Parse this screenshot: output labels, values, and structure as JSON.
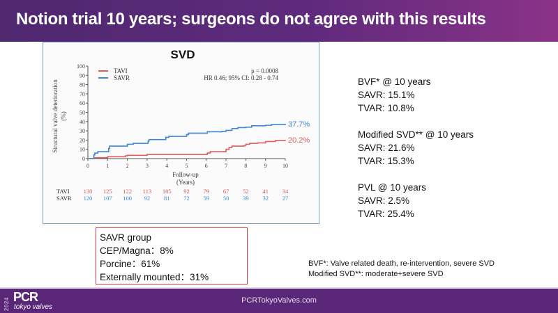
{
  "header": {
    "title": "Notion trial 10 years; surgeons do not agree with this results"
  },
  "chart_data": {
    "type": "line",
    "title": "SVD",
    "xlabel": "Follow-up",
    "xlabel_sub": "(Years)",
    "ylabel": "Structural valve deterioration",
    "ylabel_sub": "(%)",
    "xlim": [
      0,
      10
    ],
    "ylim": [
      0,
      100
    ],
    "xticks": [
      0,
      1,
      2,
      3,
      4,
      5,
      6,
      7,
      8,
      9,
      10
    ],
    "yticks": [
      0,
      10,
      20,
      30,
      40,
      50,
      60,
      70,
      80,
      90,
      100
    ],
    "grid": false,
    "legend": {
      "placement": "top-left",
      "entries": [
        "TAVI",
        "SAVR"
      ]
    },
    "annotations": {
      "p_value": "p = 0.0008",
      "hr": "HR 0.46; 95% CI: 0.28 - 0.74"
    },
    "series": [
      {
        "name": "TAVI",
        "color": "#e05a5e",
        "end_label": "20.2%",
        "steps": [
          [
            0,
            0
          ],
          [
            0.3,
            0
          ],
          [
            0.3,
            1
          ],
          [
            1.0,
            1
          ],
          [
            1.0,
            2
          ],
          [
            1.9,
            2
          ],
          [
            1.9,
            3
          ],
          [
            2.0,
            3
          ],
          [
            2.0,
            3.5
          ],
          [
            3.0,
            3.5
          ],
          [
            3.0,
            4.5
          ],
          [
            6.0,
            4.5
          ],
          [
            6.05,
            6
          ],
          [
            6.2,
            7.5
          ],
          [
            6.9,
            7.5
          ],
          [
            7.0,
            10
          ],
          [
            7.15,
            12
          ],
          [
            7.3,
            13.5
          ],
          [
            7.9,
            14
          ],
          [
            8.0,
            15.5
          ],
          [
            8.2,
            16.5
          ],
          [
            8.6,
            17
          ],
          [
            9.0,
            18.5
          ],
          [
            9.5,
            19.5
          ],
          [
            10.0,
            20.2
          ]
        ]
      },
      {
        "name": "SAVR",
        "color": "#3d87d4",
        "end_label": "37.7%",
        "steps": [
          [
            0,
            0
          ],
          [
            0.25,
            0
          ],
          [
            0.3,
            4
          ],
          [
            0.35,
            6
          ],
          [
            0.5,
            6
          ],
          [
            0.5,
            7.5
          ],
          [
            1.0,
            7.5
          ],
          [
            1.05,
            11
          ],
          [
            1.1,
            13.5
          ],
          [
            2.0,
            13.5
          ],
          [
            2.0,
            15.5
          ],
          [
            2.3,
            15.5
          ],
          [
            2.3,
            16.5
          ],
          [
            3.0,
            16.5
          ],
          [
            3.05,
            19
          ],
          [
            3.1,
            20.5
          ],
          [
            3.9,
            20.5
          ],
          [
            3.95,
            23
          ],
          [
            4.1,
            24
          ],
          [
            4.9,
            24
          ],
          [
            5.0,
            26
          ],
          [
            5.1,
            27.5
          ],
          [
            6.0,
            27.5
          ],
          [
            6.05,
            29
          ],
          [
            6.8,
            29.5
          ],
          [
            7.0,
            30.5
          ],
          [
            7.3,
            32.5
          ],
          [
            7.6,
            33.5
          ],
          [
            8.0,
            34
          ],
          [
            8.3,
            35.5
          ],
          [
            9.0,
            36
          ],
          [
            9.3,
            36.8
          ],
          [
            10.0,
            37.7
          ]
        ]
      }
    ],
    "at_risk": {
      "rows": [
        {
          "label": "TAVI",
          "color": "#d5585c",
          "values": [
            130,
            125,
            122,
            113,
            105,
            92,
            79,
            67,
            52,
            41,
            34
          ]
        },
        {
          "label": "SAVR",
          "color": "#3b86cf",
          "values": [
            120,
            107,
            100,
            92,
            81,
            72,
            59,
            50,
            39,
            32,
            27
          ]
        }
      ]
    }
  },
  "stats": {
    "groups": [
      {
        "lines": [
          "BVF* @ 10 years",
          "SAVR: 15.1%",
          "TVAR: 10.8%"
        ]
      },
      {
        "lines": [
          "Modified SVD** @ 10 years",
          "SAVR: 21.6%",
          "TVAR: 15.3%"
        ]
      },
      {
        "lines": [
          "PVL @ 10 years",
          "SAVR: 2.5%",
          "TVAR: 25.4%"
        ]
      }
    ]
  },
  "savr_box": {
    "lines": [
      "SAVR group",
      "CEP/Magna：8%",
      "Porcine：61%",
      "Externally mounted：31%"
    ]
  },
  "footnotes": [
    "BVF*: Valve related death, re-intervention, severe SVD",
    "Modified SVD**: moderate+severe SVD"
  ],
  "footer": {
    "logo_year": "2024",
    "logo_text": "PCR",
    "logo_sub": "tokyo valves",
    "url": "PCRTokyoValves.com"
  }
}
